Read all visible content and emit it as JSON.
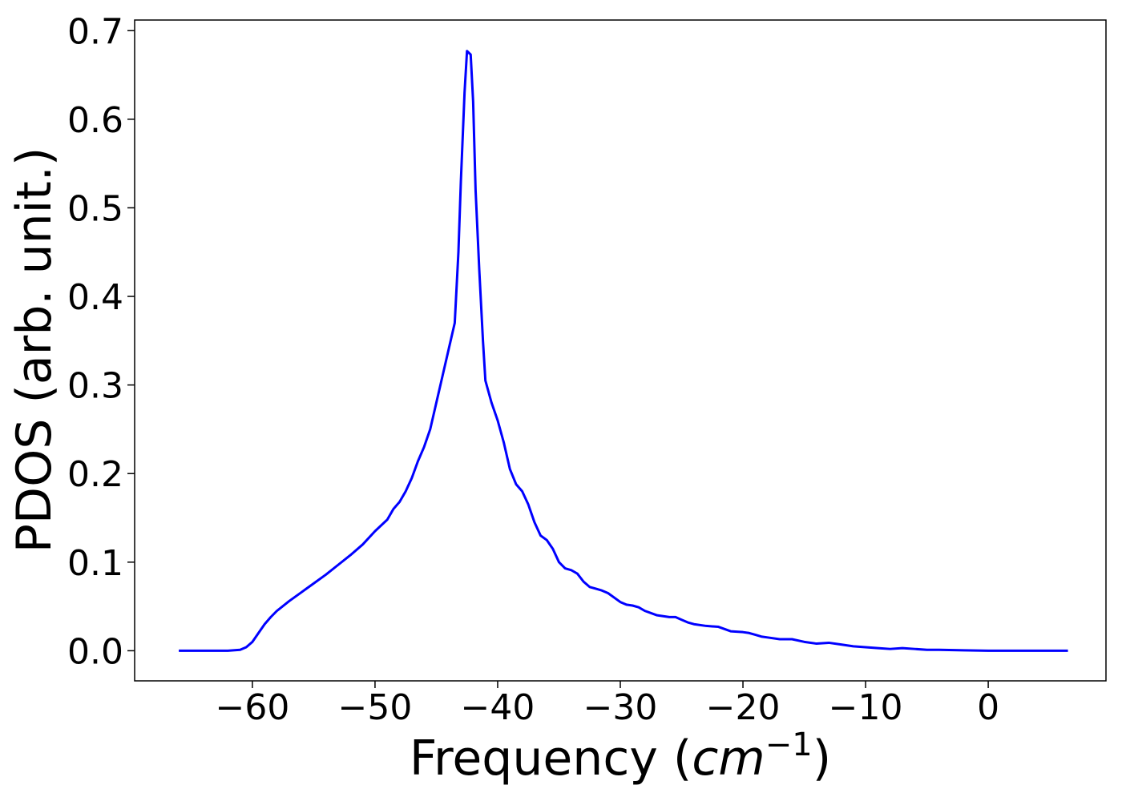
{
  "chart_data": {
    "type": "line",
    "title": "",
    "xlabel_prefix": "Frequency (",
    "xlabel_unit_base": "cm",
    "xlabel_unit_exp": "−1",
    "xlabel_suffix": ")",
    "ylabel": "PDOS (arb. unit.)",
    "xlim": [
      -69.6,
      9.6
    ],
    "ylim": [
      -0.034,
      0.712
    ],
    "xticks": [
      -60,
      -50,
      -40,
      -30,
      -20,
      -10,
      0
    ],
    "xtick_labels": [
      "−60",
      "−50",
      "−40",
      "−30",
      "−20",
      "−10",
      "0"
    ],
    "yticks": [
      0.0,
      0.1,
      0.2,
      0.3,
      0.4,
      0.5,
      0.6,
      0.7
    ],
    "ytick_labels": [
      "0.0",
      "0.1",
      "0.2",
      "0.3",
      "0.4",
      "0.5",
      "0.6",
      "0.7"
    ],
    "grid": false,
    "series": [
      {
        "color": "#0000ff",
        "x": [
          -66,
          -64,
          -62,
          -61,
          -60.5,
          -60,
          -59.5,
          -59,
          -58.5,
          -58,
          -57,
          -56,
          -55,
          -54,
          -53,
          -52,
          -51,
          -50,
          -49,
          -48.5,
          -48,
          -47.5,
          -47,
          -46.5,
          -46,
          -45.5,
          -45,
          -44.5,
          -44,
          -43.5,
          -43.2,
          -43,
          -42.7,
          -42.5,
          -42.2,
          -42,
          -41.8,
          -41.5,
          -41.2,
          -41,
          -40.5,
          -40,
          -39.5,
          -39,
          -38.5,
          -38,
          -37.5,
          -37,
          -36.5,
          -36,
          -35.5,
          -35,
          -34.5,
          -34,
          -33.5,
          -33,
          -32.5,
          -32,
          -31.5,
          -31,
          -30,
          -29.5,
          -29,
          -28.5,
          -28,
          -27,
          -26,
          -25.5,
          -25,
          -24.5,
          -24,
          -23,
          -22,
          -21,
          -20,
          -19.5,
          -19,
          -18.5,
          -18,
          -17,
          -16,
          -15,
          -14,
          -13,
          -12,
          -11,
          -10,
          -9,
          -8,
          -7,
          -6,
          -5,
          -4,
          -2,
          0,
          2,
          4,
          6.5
        ],
        "y": [
          0.0,
          0.0,
          0.0,
          0.001,
          0.004,
          0.01,
          0.02,
          0.03,
          0.038,
          0.045,
          0.056,
          0.066,
          0.076,
          0.086,
          0.097,
          0.108,
          0.12,
          0.135,
          0.148,
          0.16,
          0.168,
          0.18,
          0.195,
          0.214,
          0.23,
          0.25,
          0.28,
          0.31,
          0.34,
          0.37,
          0.45,
          0.53,
          0.63,
          0.677,
          0.673,
          0.62,
          0.52,
          0.43,
          0.35,
          0.305,
          0.28,
          0.26,
          0.235,
          0.205,
          0.188,
          0.18,
          0.165,
          0.145,
          0.13,
          0.125,
          0.115,
          0.1,
          0.093,
          0.091,
          0.087,
          0.078,
          0.072,
          0.07,
          0.068,
          0.065,
          0.055,
          0.052,
          0.051,
          0.049,
          0.045,
          0.04,
          0.038,
          0.038,
          0.035,
          0.032,
          0.03,
          0.028,
          0.027,
          0.022,
          0.021,
          0.02,
          0.018,
          0.016,
          0.015,
          0.013,
          0.013,
          0.01,
          0.008,
          0.009,
          0.007,
          0.005,
          0.004,
          0.003,
          0.002,
          0.003,
          0.002,
          0.001,
          0.001,
          0.0005,
          0.0,
          0.0,
          0.0,
          0.0
        ]
      }
    ]
  }
}
